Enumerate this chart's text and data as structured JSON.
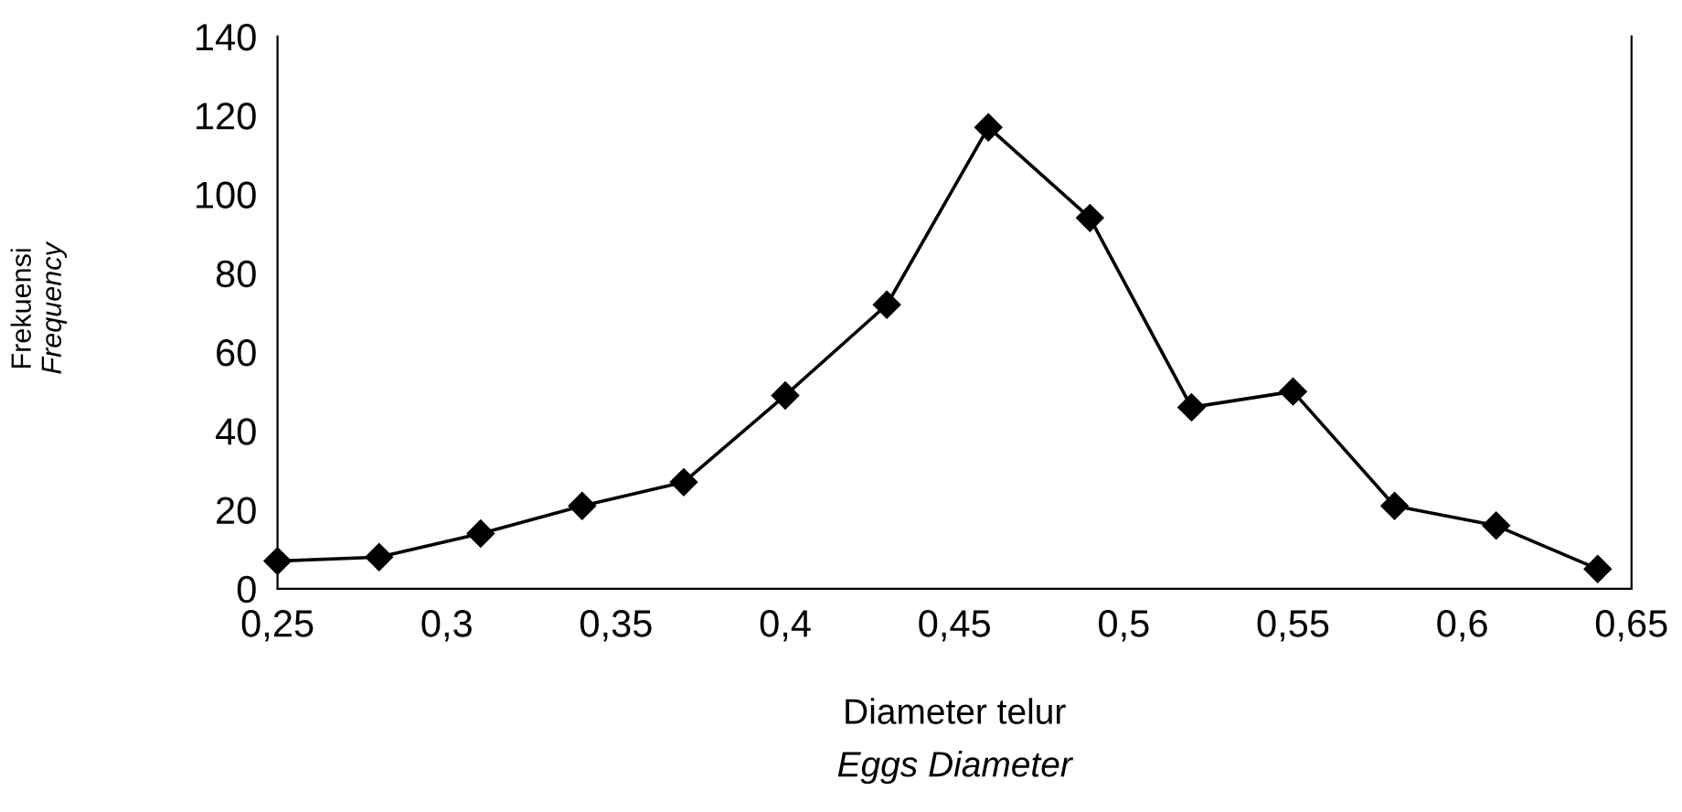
{
  "chart_data": {
    "type": "line",
    "xlabel": "Diameter telur\nEggs Diameter",
    "ylabel": "Frekuensi\nFrequency",
    "x": [
      0.25,
      0.28,
      0.31,
      0.34,
      0.37,
      0.4,
      0.43,
      0.46,
      0.49,
      0.52,
      0.55,
      0.58,
      0.61,
      0.64
    ],
    "series": [
      {
        "color": "#000000",
        "values": [
          7,
          8,
          14,
          21,
          27,
          49,
          72,
          117,
          94,
          46,
          50,
          21,
          16,
          5
        ]
      }
    ],
    "xlim": [
      0.25,
      0.65
    ],
    "xticks": [
      {
        "value": 0.25,
        "label": "0,25"
      },
      {
        "value": 0.3,
        "label": "0,3"
      },
      {
        "value": 0.35,
        "label": "0,35"
      },
      {
        "value": 0.4,
        "label": "0,4"
      },
      {
        "value": 0.45,
        "label": "0,45"
      },
      {
        "value": 0.5,
        "label": "0,5"
      },
      {
        "value": 0.55,
        "label": "0,55"
      },
      {
        "value": 0.6,
        "label": "0,6"
      },
      {
        "value": 0.65,
        "label": "0,65"
      }
    ],
    "ylim": [
      0,
      140
    ],
    "yticks": [
      0,
      20,
      40,
      60,
      80,
      100,
      120,
      140
    ],
    "grid": false,
    "marker": "diamond",
    "line_style": "solid"
  }
}
